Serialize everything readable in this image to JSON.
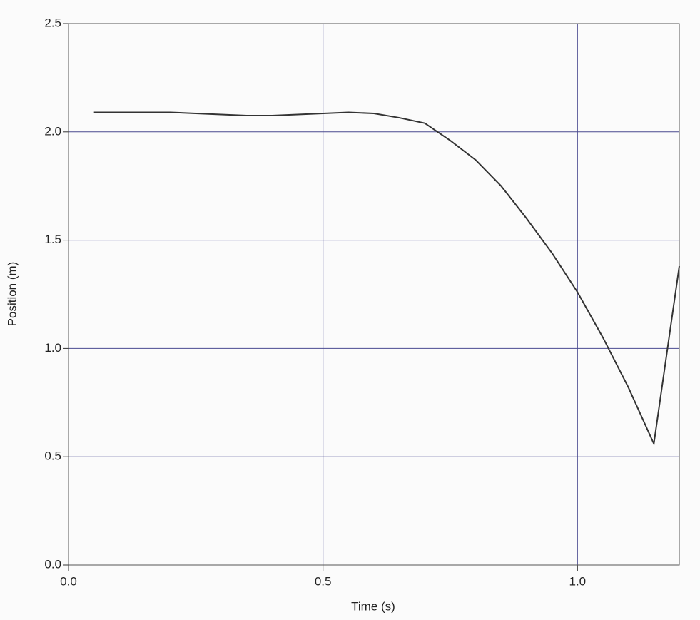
{
  "chart_data": {
    "type": "line",
    "x_label": "Time (s)",
    "y_label": "Position (m)",
    "x": [
      0.05,
      0.1,
      0.15,
      0.2,
      0.25,
      0.3,
      0.35,
      0.4,
      0.45,
      0.5,
      0.55,
      0.6,
      0.65,
      0.7,
      0.75,
      0.8,
      0.85,
      0.9,
      0.95,
      1.0,
      1.05,
      1.1,
      1.15,
      1.2
    ],
    "series": [
      {
        "color": "#333333",
        "values": [
          2.09,
          2.09,
          2.09,
          2.09,
          2.085,
          2.08,
          2.075,
          2.075,
          2.08,
          2.085,
          2.09,
          2.085,
          2.065,
          2.04,
          1.96,
          1.87,
          1.75,
          1.6,
          1.44,
          1.26,
          1.05,
          0.82,
          0.56,
          1.38
        ]
      }
    ],
    "xlim": [
      0,
      1.2
    ],
    "xticks": [
      {
        "value": 0,
        "label": "0.0"
      },
      0.5,
      {
        "value": 1,
        "label": "1.0"
      }
    ],
    "ylim": [
      0,
      2.5
    ],
    "yticks": [
      {
        "value": 0,
        "label": "0.0"
      },
      0.5,
      {
        "value": 1,
        "label": "1.0"
      },
      1.5,
      {
        "value": 2,
        "label": "2.0"
      },
      2.5
    ],
    "grid": true
  }
}
